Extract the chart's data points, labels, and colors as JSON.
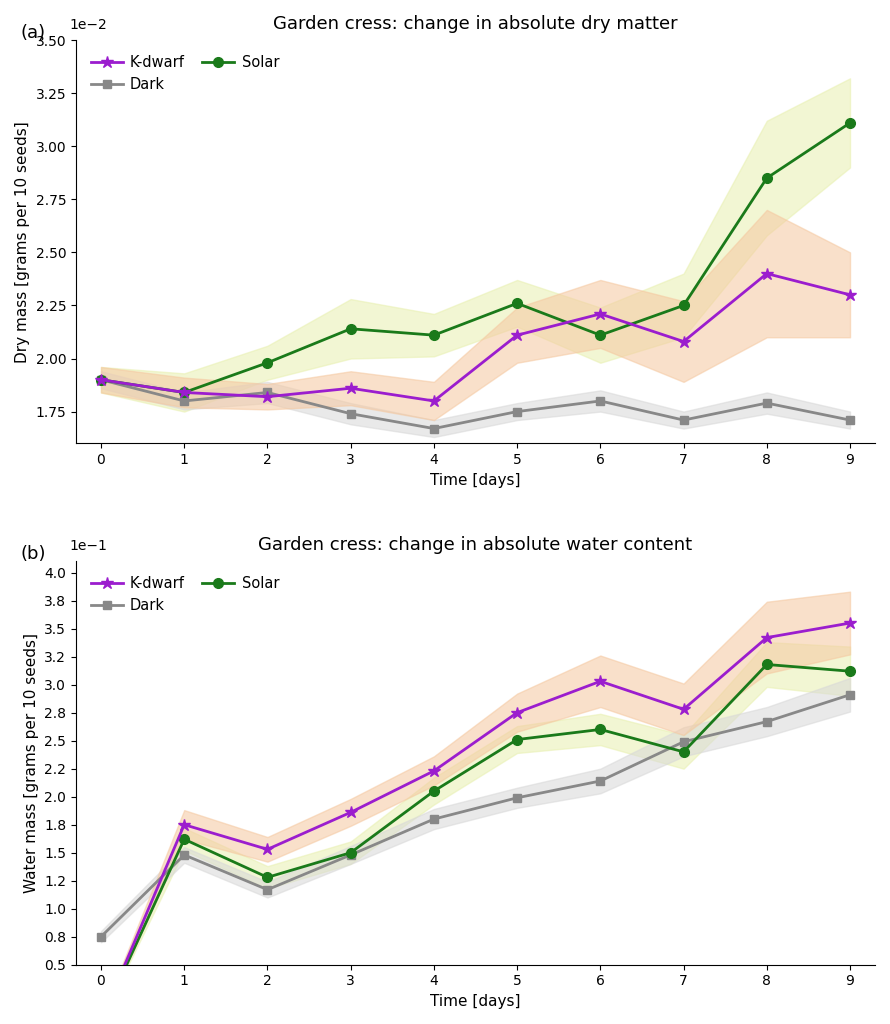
{
  "days": [
    0,
    1,
    2,
    3,
    4,
    5,
    6,
    7,
    8,
    9
  ],
  "dry_kdwarf_mean": [
    1.9,
    1.84,
    1.82,
    1.86,
    1.8,
    2.11,
    2.21,
    2.08,
    2.4,
    2.3
  ],
  "dry_kdwarf_lo": [
    1.84,
    1.77,
    1.76,
    1.78,
    1.71,
    1.98,
    2.05,
    1.89,
    2.1,
    2.1
  ],
  "dry_kdwarf_hi": [
    1.96,
    1.91,
    1.88,
    1.94,
    1.89,
    2.24,
    2.37,
    2.27,
    2.7,
    2.5
  ],
  "dry_solar_mean": [
    1.9,
    1.84,
    1.98,
    2.14,
    2.11,
    2.26,
    2.11,
    2.25,
    2.85,
    3.11
  ],
  "dry_solar_lo": [
    1.84,
    1.75,
    1.9,
    2.0,
    2.01,
    2.15,
    1.98,
    2.1,
    2.58,
    2.9
  ],
  "dry_solar_hi": [
    1.96,
    1.93,
    2.06,
    2.28,
    2.21,
    2.37,
    2.24,
    2.4,
    3.12,
    3.32
  ],
  "dry_dark_mean": [
    1.9,
    1.8,
    1.84,
    1.74,
    1.67,
    1.75,
    1.8,
    1.71,
    1.79,
    1.71
  ],
  "dry_dark_lo": [
    1.86,
    1.76,
    1.79,
    1.69,
    1.63,
    1.71,
    1.75,
    1.67,
    1.74,
    1.67
  ],
  "dry_dark_hi": [
    1.94,
    1.84,
    1.89,
    1.79,
    1.71,
    1.79,
    1.85,
    1.75,
    1.84,
    1.75
  ],
  "wet_kdwarf_mean": [
    0.0,
    1.75,
    1.53,
    1.86,
    2.23,
    2.75,
    3.03,
    2.78,
    3.42,
    3.55
  ],
  "wet_kdwarf_lo": [
    0.0,
    1.62,
    1.42,
    1.74,
    2.1,
    2.58,
    2.8,
    2.55,
    3.1,
    3.27
  ],
  "wet_kdwarf_hi": [
    0.03,
    1.88,
    1.64,
    1.98,
    2.36,
    2.92,
    3.26,
    3.01,
    3.74,
    3.83
  ],
  "wet_solar_mean": [
    0.0,
    1.62,
    1.28,
    1.5,
    2.05,
    2.51,
    2.6,
    2.4,
    3.18,
    3.12
  ],
  "wet_solar_lo": [
    0.0,
    1.52,
    1.18,
    1.4,
    1.93,
    2.39,
    2.46,
    2.25,
    2.98,
    2.9
  ],
  "wet_solar_hi": [
    0.03,
    1.72,
    1.38,
    1.6,
    2.17,
    2.63,
    2.74,
    2.55,
    3.38,
    3.34
  ],
  "wet_dark_mean": [
    0.75,
    1.48,
    1.17,
    1.48,
    1.8,
    1.99,
    2.14,
    2.49,
    2.67,
    2.91
  ],
  "wet_dark_lo": [
    0.7,
    1.41,
    1.1,
    1.4,
    1.71,
    1.9,
    2.03,
    2.36,
    2.54,
    2.76
  ],
  "wet_dark_hi": [
    0.8,
    1.55,
    1.24,
    1.56,
    1.89,
    2.08,
    2.25,
    2.62,
    2.8,
    3.06
  ],
  "color_kdwarf": "#9b1dce",
  "color_solar": "#1a7a1a",
  "color_dark": "#888888",
  "fill_kdwarf": "#f5c8a0",
  "fill_solar": "#e8f0b0",
  "fill_dark": "#d8d8d8",
  "title_dry": "Garden cress: change in absolute dry matter",
  "title_wet": "Garden cress: change in absolute water content",
  "ylabel_dry": "Dry mass [grams per 10 seeds]",
  "ylabel_wet": "Water mass [grams per 10 seeds]",
  "xlabel": "Time [days]",
  "dry_ylim": [
    1.6,
    3.5
  ],
  "wet_ylim": [
    0.5,
    4.1
  ]
}
